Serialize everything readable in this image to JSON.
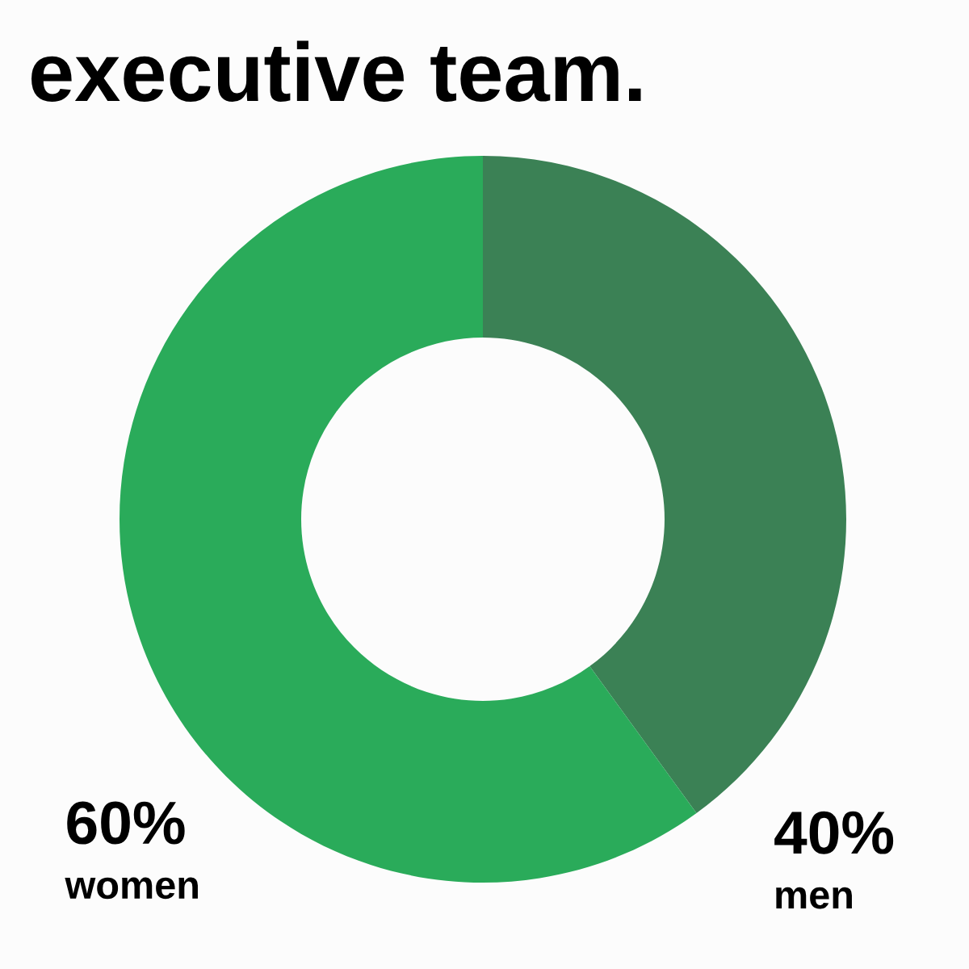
{
  "chart_data": {
    "type": "donut",
    "title": "executive team.",
    "categories": [
      "men",
      "women"
    ],
    "values": [
      40,
      60
    ],
    "colors": [
      "#3b8155",
      "#2aab5a"
    ],
    "value_labels": [
      "40%",
      "60%"
    ]
  }
}
